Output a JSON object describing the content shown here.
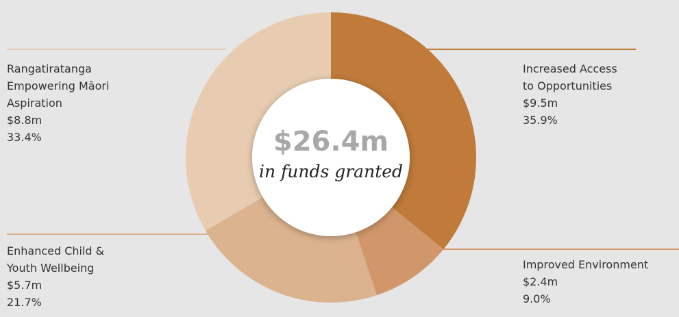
{
  "chart_data": {
    "type": "donut",
    "center_text": "$26.4m",
    "center_subtext": "in funds granted",
    "categories": [
      "Increased Access\nto Opportunities",
      "Improved Environment",
      "Enhanced Child &\nYouth Wellbeing",
      "Rangatiratanga\nEmpowering Māori\nAspiration"
    ],
    "values": [
      35.9,
      9.0,
      21.7,
      33.4
    ],
    "value_labels": [
      "35.9%",
      "9.0%",
      "21.7%",
      "33.4%"
    ],
    "amounts": [
      9.5,
      2.4,
      5.7,
      8.8
    ],
    "amount_labels": [
      "$9.5m",
      "$2.4m",
      "$5.7m",
      "$8.8m"
    ],
    "colors": [
      "#c07a3a",
      "#d1976a",
      "#dbb38e",
      "#e8ccb1"
    ]
  }
}
